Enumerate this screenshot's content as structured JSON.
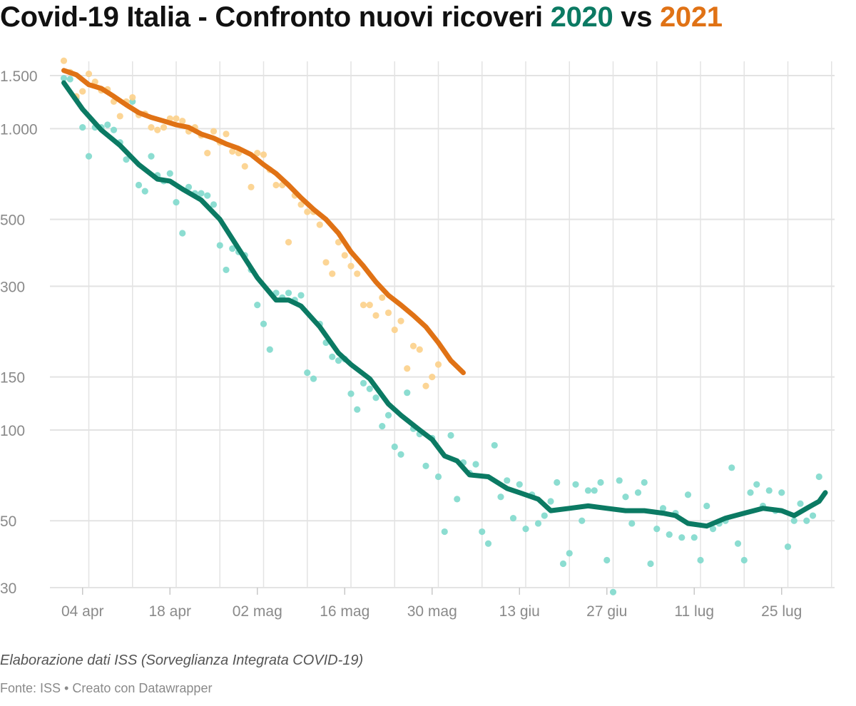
{
  "title": {
    "prefix": "Covid-19 Italia - Confronto nuovi ricoveri ",
    "year_a": "2020",
    "middle": " vs ",
    "year_b": "2021"
  },
  "notes": "Elaborazione dati ISS (Sorveglianza Integrata COVID-19)",
  "source": "Fonte: ISS • Creato con Datawrapper",
  "colors": {
    "2020_line": "#0b7a63",
    "2020_dots": "#7fd9cc",
    "2021_line": "#e07215",
    "2021_dots": "#fcd08a",
    "grid": "#e3e3e3",
    "tick_text": "#8a8a8a"
  },
  "chart_data": {
    "type": "line",
    "title": "Covid-19 Italia - Confronto nuovi ricoveri 2020 vs 2021",
    "x_start": "04-01",
    "x_end": "08-01",
    "yscale": "log",
    "ylim": [
      30,
      1650
    ],
    "grid": true,
    "y_ticks": [
      {
        "value": 1500,
        "label": "1.500"
      },
      {
        "value": 1000,
        "label": "1.000"
      },
      {
        "value": 500,
        "label": "500"
      },
      {
        "value": 300,
        "label": "300"
      },
      {
        "value": 150,
        "label": "150"
      },
      {
        "value": 100,
        "label": "100"
      },
      {
        "value": 50,
        "label": "50"
      },
      {
        "value": 30,
        "label": "30"
      }
    ],
    "x_ticks": [
      {
        "date": "04-04",
        "label": "04 apr"
      },
      {
        "date": "04-18",
        "label": "18 apr"
      },
      {
        "date": "05-02",
        "label": "02 mag"
      },
      {
        "date": "05-16",
        "label": "16 mag"
      },
      {
        "date": "05-30",
        "label": "30 mag"
      },
      {
        "date": "06-13",
        "label": "13 giu"
      },
      {
        "date": "06-27",
        "label": "27 giu"
      },
      {
        "date": "07-11",
        "label": "11 lug"
      },
      {
        "date": "07-25",
        "label": "25 lug"
      }
    ],
    "series": [
      {
        "name": "2020",
        "smoothed": [
          [
            "04-01",
            1420
          ],
          [
            "04-04",
            1160
          ],
          [
            "04-07",
            990
          ],
          [
            "04-10",
            880
          ],
          [
            "04-13",
            760
          ],
          [
            "04-16",
            680
          ],
          [
            "04-18",
            670
          ],
          [
            "04-20",
            630
          ],
          [
            "04-23",
            580
          ],
          [
            "04-26",
            500
          ],
          [
            "04-29",
            400
          ],
          [
            "05-02",
            320
          ],
          [
            "05-05",
            270
          ],
          [
            "05-07",
            270
          ],
          [
            "05-09",
            258
          ],
          [
            "05-12",
            220
          ],
          [
            "05-15",
            180
          ],
          [
            "05-17",
            165
          ],
          [
            "05-20",
            148
          ],
          [
            "05-23",
            122
          ],
          [
            "05-25",
            112
          ],
          [
            "05-28",
            100
          ],
          [
            "05-30",
            93
          ],
          [
            "06-01",
            82
          ],
          [
            "06-03",
            79
          ],
          [
            "06-05",
            71
          ],
          [
            "06-08",
            70
          ],
          [
            "06-11",
            64
          ],
          [
            "06-13",
            62
          ],
          [
            "06-16",
            59
          ],
          [
            "06-18",
            54
          ],
          [
            "06-21",
            55
          ],
          [
            "06-24",
            56
          ],
          [
            "06-27",
            55
          ],
          [
            "06-30",
            54
          ],
          [
            "07-03",
            54
          ],
          [
            "07-06",
            53
          ],
          [
            "07-08",
            52
          ],
          [
            "07-10",
            49
          ],
          [
            "07-13",
            48
          ],
          [
            "07-16",
            51
          ],
          [
            "07-19",
            53
          ],
          [
            "07-22",
            55
          ],
          [
            "07-25",
            54
          ],
          [
            "07-27",
            52
          ],
          [
            "07-29",
            55
          ],
          [
            "07-31",
            58
          ],
          [
            "08-01",
            62
          ]
        ],
        "daily": [
          [
            "04-01",
            1470
          ],
          [
            "04-02",
            1460
          ],
          [
            "04-03",
            1260
          ],
          [
            "04-04",
            1010
          ],
          [
            "04-05",
            810
          ],
          [
            "04-06",
            1010
          ],
          [
            "04-07",
            1010
          ],
          [
            "04-08",
            1030
          ],
          [
            "04-09",
            990
          ],
          [
            "04-10",
            900
          ],
          [
            "04-11",
            790
          ],
          [
            "04-12",
            1230
          ],
          [
            "04-13",
            650
          ],
          [
            "04-14",
            620
          ],
          [
            "04-15",
            810
          ],
          [
            "04-16",
            700
          ],
          [
            "04-17",
            670
          ],
          [
            "04-18",
            710
          ],
          [
            "04-19",
            570
          ],
          [
            "04-20",
            450
          ],
          [
            "04-21",
            640
          ],
          [
            "04-22",
            610
          ],
          [
            "04-23",
            610
          ],
          [
            "04-24",
            600
          ],
          [
            "04-25",
            560
          ],
          [
            "04-26",
            410
          ],
          [
            "04-27",
            340
          ],
          [
            "04-28",
            400
          ],
          [
            "04-29",
            390
          ],
          [
            "04-30",
            380
          ],
          [
            "05-01",
            340
          ],
          [
            "05-02",
            260
          ],
          [
            "05-03",
            225
          ],
          [
            "05-04",
            185
          ],
          [
            "05-05",
            285
          ],
          [
            "05-06",
            275
          ],
          [
            "05-07",
            285
          ],
          [
            "05-08",
            270
          ],
          [
            "05-09",
            280
          ],
          [
            "05-10",
            155
          ],
          [
            "05-11",
            148
          ],
          [
            "05-12",
            225
          ],
          [
            "05-13",
            195
          ],
          [
            "05-14",
            175
          ],
          [
            "05-15",
            170
          ],
          [
            "05-16",
            172
          ],
          [
            "05-17",
            132
          ],
          [
            "05-18",
            117
          ],
          [
            "05-19",
            143
          ],
          [
            "05-20",
            137
          ],
          [
            "05-21",
            128
          ],
          [
            "05-22",
            103
          ],
          [
            "05-23",
            112
          ],
          [
            "05-24",
            88
          ],
          [
            "05-25",
            83
          ],
          [
            "05-26",
            133
          ],
          [
            "05-27",
            101
          ],
          [
            "05-28",
            97
          ],
          [
            "05-29",
            76
          ],
          [
            "05-30",
            94
          ],
          [
            "05-31",
            70
          ],
          [
            "06-01",
            46
          ],
          [
            "06-02",
            96
          ],
          [
            "06-03",
            59
          ],
          [
            "06-04",
            78
          ],
          [
            "06-05",
            72
          ],
          [
            "06-06",
            77
          ],
          [
            "06-07",
            46
          ],
          [
            "06-08",
            42
          ],
          [
            "06-09",
            89
          ],
          [
            "06-10",
            60
          ],
          [
            "06-11",
            68
          ],
          [
            "06-12",
            51
          ],
          [
            "06-13",
            66
          ],
          [
            "06-14",
            47
          ],
          [
            "06-15",
            61
          ],
          [
            "06-16",
            49
          ],
          [
            "06-17",
            52
          ],
          [
            "06-18",
            58
          ],
          [
            "06-19",
            67
          ],
          [
            "06-20",
            36
          ],
          [
            "06-21",
            39
          ],
          [
            "06-22",
            66
          ],
          [
            "06-23",
            50
          ],
          [
            "06-24",
            63
          ],
          [
            "06-25",
            63
          ],
          [
            "06-26",
            67
          ],
          [
            "06-27",
            37
          ],
          [
            "06-28",
            29
          ],
          [
            "06-29",
            68
          ],
          [
            "06-30",
            60
          ],
          [
            "07-01",
            49
          ],
          [
            "07-02",
            62
          ],
          [
            "07-03",
            67
          ],
          [
            "07-04",
            36
          ],
          [
            "07-05",
            47
          ],
          [
            "07-06",
            55
          ],
          [
            "07-07",
            45
          ],
          [
            "07-08",
            53
          ],
          [
            "07-09",
            44
          ],
          [
            "07-10",
            61
          ],
          [
            "07-11",
            44
          ],
          [
            "07-12",
            37
          ],
          [
            "07-13",
            56
          ],
          [
            "07-14",
            47
          ],
          [
            "07-15",
            49
          ],
          [
            "07-16",
            50
          ],
          [
            "07-17",
            75
          ],
          [
            "07-18",
            42
          ],
          [
            "07-19",
            37
          ],
          [
            "07-20",
            62
          ],
          [
            "07-21",
            66
          ],
          [
            "07-22",
            56
          ],
          [
            "07-23",
            63
          ],
          [
            "07-24",
            54
          ],
          [
            "07-25",
            62
          ],
          [
            "07-26",
            41
          ],
          [
            "07-27",
            50
          ],
          [
            "07-28",
            57
          ],
          [
            "07-29",
            50
          ],
          [
            "07-30",
            52
          ],
          [
            "07-31",
            70
          ]
        ]
      },
      {
        "name": "2021",
        "smoothed": [
          [
            "04-01",
            1560
          ],
          [
            "04-03",
            1510
          ],
          [
            "04-05",
            1400
          ],
          [
            "04-07",
            1360
          ],
          [
            "04-09",
            1280
          ],
          [
            "04-11",
            1200
          ],
          [
            "04-13",
            1130
          ],
          [
            "04-15",
            1090
          ],
          [
            "04-17",
            1060
          ],
          [
            "04-19",
            1030
          ],
          [
            "04-21",
            1010
          ],
          [
            "04-23",
            960
          ],
          [
            "04-25",
            930
          ],
          [
            "04-27",
            890
          ],
          [
            "04-29",
            860
          ],
          [
            "05-01",
            820
          ],
          [
            "05-03",
            760
          ],
          [
            "05-05",
            710
          ],
          [
            "05-07",
            650
          ],
          [
            "05-09",
            590
          ],
          [
            "05-11",
            540
          ],
          [
            "05-13",
            500
          ],
          [
            "05-15",
            450
          ],
          [
            "05-17",
            390
          ],
          [
            "05-19",
            350
          ],
          [
            "05-21",
            310
          ],
          [
            "05-23",
            280
          ],
          [
            "05-25",
            260
          ],
          [
            "05-27",
            240
          ],
          [
            "05-29",
            220
          ],
          [
            "05-31",
            195
          ],
          [
            "06-02",
            170
          ],
          [
            "06-04",
            155
          ]
        ],
        "daily": [
          [
            "04-01",
            1680
          ],
          [
            "04-02",
            1540
          ],
          [
            "04-03",
            1280
          ],
          [
            "04-04",
            1330
          ],
          [
            "04-05",
            1520
          ],
          [
            "04-06",
            1430
          ],
          [
            "04-07",
            1340
          ],
          [
            "04-08",
            1350
          ],
          [
            "04-09",
            1230
          ],
          [
            "04-10",
            1100
          ],
          [
            "04-11",
            1230
          ],
          [
            "04-12",
            1270
          ],
          [
            "04-13",
            1110
          ],
          [
            "04-14",
            1120
          ],
          [
            "04-15",
            1010
          ],
          [
            "04-16",
            990
          ],
          [
            "04-17",
            1010
          ],
          [
            "04-18",
            1080
          ],
          [
            "04-19",
            1080
          ],
          [
            "04-20",
            1060
          ],
          [
            "04-21",
            980
          ],
          [
            "04-22",
            1010
          ],
          [
            "04-23",
            950
          ],
          [
            "04-24",
            830
          ],
          [
            "04-25",
            980
          ],
          [
            "04-26",
            900
          ],
          [
            "04-27",
            960
          ],
          [
            "04-28",
            840
          ],
          [
            "04-29",
            830
          ],
          [
            "04-30",
            750
          ],
          [
            "05-01",
            640
          ],
          [
            "05-02",
            830
          ],
          [
            "05-03",
            820
          ],
          [
            "05-04",
            730
          ],
          [
            "05-05",
            650
          ],
          [
            "05-06",
            650
          ],
          [
            "05-07",
            420
          ],
          [
            "05-08",
            600
          ],
          [
            "05-09",
            560
          ],
          [
            "05-10",
            530
          ],
          [
            "05-11",
            530
          ],
          [
            "05-12",
            480
          ],
          [
            "05-13",
            360
          ],
          [
            "05-14",
            330
          ],
          [
            "05-15",
            420
          ],
          [
            "05-16",
            380
          ],
          [
            "05-17",
            350
          ],
          [
            "05-18",
            330
          ],
          [
            "05-19",
            260
          ],
          [
            "05-20",
            260
          ],
          [
            "05-21",
            240
          ],
          [
            "05-22",
            275
          ],
          [
            "05-23",
            245
          ],
          [
            "05-24",
            215
          ],
          [
            "05-25",
            230
          ],
          [
            "05-26",
            160
          ],
          [
            "05-27",
            190
          ],
          [
            "05-28",
            185
          ],
          [
            "05-29",
            140
          ],
          [
            "05-30",
            150
          ],
          [
            "05-31",
            165
          ]
        ]
      }
    ]
  }
}
